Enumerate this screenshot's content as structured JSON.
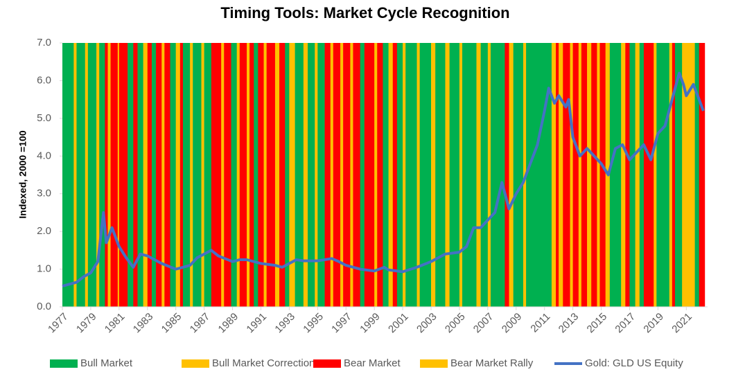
{
  "chart_data": {
    "type": "line",
    "title": "Timing Tools: Market Cycle Recognition",
    "ylabel": "Indexed, 2000 =100",
    "xlim": [
      1977,
      2022.5
    ],
    "ylim": [
      0,
      7
    ],
    "xticks": [
      1977,
      1979,
      1981,
      1983,
      1985,
      1987,
      1989,
      1991,
      1993,
      1995,
      1997,
      1999,
      2001,
      2003,
      2005,
      2007,
      2009,
      2011,
      2013,
      2015,
      2017,
      2019,
      2021
    ],
    "yticks": [
      {
        "value": 0,
        "label": "0.0"
      },
      {
        "value": 1,
        "label": "1.0"
      },
      {
        "value": 2,
        "label": "2.0"
      },
      {
        "value": 3,
        "label": "3.0"
      },
      {
        "value": 4,
        "label": "4.0"
      },
      {
        "value": 5,
        "label": "5.0"
      },
      {
        "value": 6,
        "label": "6.0"
      },
      {
        "value": 7,
        "label": "7.0"
      }
    ],
    "regimes": [
      {
        "name": "Bull Market",
        "color": "#00b050"
      },
      {
        "name": "Bull Market Correction",
        "color": "#ffc000"
      },
      {
        "name": "Bear Market",
        "color": "#ff0000"
      },
      {
        "name": "Bear Market Rally",
        "color": "#ffc000"
      }
    ],
    "band_edges": [
      1977,
      1977.8,
      1978,
      1978.6,
      1978.8,
      1979.4,
      1979.6,
      1980.0,
      1980.2,
      1980.4,
      1980.9,
      1981.0,
      1981.6,
      1982.0,
      1982.3,
      1982.7,
      1983.0,
      1983.3,
      1983.6,
      1984.0,
      1984.2,
      1984.6,
      1985.0,
      1985.3,
      1985.5,
      1986.0,
      1986.2,
      1986.8,
      1987.0,
      1987.5,
      1988.2,
      1988.4,
      1988.9,
      1989.3,
      1989.5,
      1990.0,
      1990.2,
      1990.5,
      1990.8,
      1991.2,
      1991.4,
      1992.0,
      1992.3,
      1992.7,
      1993.0,
      1993.4,
      1994.0,
      1994.3,
      1994.8,
      1995.0,
      1995.5,
      1995.9,
      1996.1,
      1996.6,
      1996.8,
      1997.3,
      1997.5,
      1998.0,
      1998.3,
      1999.0,
      1999.2,
      1999.6,
      2000.0,
      2000.3,
      2000.6,
      2001.0,
      2001.2,
      2002.0,
      2002.2,
      2003.0,
      2003.3,
      2004.0,
      2004.3,
      2005.0,
      2005.2,
      2006.2,
      2006.5,
      2007.0,
      2007.2,
      2008.2,
      2008.5,
      2008.8,
      2009.5,
      2009.7,
      2011.5,
      2011.8,
      2012.0,
      2012.3,
      2012.8,
      2013.0,
      2013.4,
      2013.6,
      2014.0,
      2014.3,
      2014.7,
      2014.9,
      2015.3,
      2015.6,
      2016.4,
      2016.7,
      2017.0,
      2017.4,
      2017.7,
      2018.0,
      2018.7,
      2018.9,
      2019.8,
      2020.0,
      2020.2,
      2020.7,
      2021.0,
      2021.2,
      2021.6,
      2021.9,
      2022.3
    ],
    "band_regime": [
      0,
      1,
      0,
      1,
      0,
      1,
      0,
      2,
      3,
      2,
      3,
      2,
      0,
      2,
      0,
      1,
      2,
      0,
      2,
      3,
      2,
      0,
      1,
      2,
      0,
      1,
      0,
      1,
      0,
      2,
      3,
      2,
      0,
      1,
      2,
      3,
      2,
      0,
      2,
      1,
      2,
      3,
      2,
      0,
      1,
      0,
      1,
      0,
      1,
      0,
      2,
      3,
      2,
      1,
      2,
      3,
      2,
      0,
      2,
      1,
      2,
      0,
      1,
      2,
      0,
      1,
      0,
      1,
      0,
      1,
      0,
      1,
      0,
      1,
      0,
      1,
      0,
      1,
      0,
      2,
      3,
      0,
      1,
      0,
      1,
      2,
      3,
      2,
      1,
      2,
      3,
      2,
      1,
      2,
      3,
      2,
      1,
      0,
      1,
      2,
      0,
      1,
      0,
      2,
      3,
      0,
      1,
      2,
      0,
      1,
      3,
      1,
      0,
      2
    ],
    "x": [
      1977,
      1978,
      1978.5,
      1979,
      1979.5,
      1979.9,
      1980.1,
      1980.5,
      1981,
      1981.5,
      1982,
      1982.5,
      1983,
      1983.5,
      1984,
      1985,
      1985.5,
      1986,
      1986.5,
      1987,
      1987.5,
      1988,
      1989,
      1989.5,
      1990,
      1991,
      1992,
      1992.5,
      1993,
      1993.5,
      1994,
      1995,
      1996,
      1996.5,
      1997,
      1998,
      1999,
      1999.7,
      2000,
      2001,
      2002,
      2003,
      2004,
      2005,
      2005.5,
      2006,
      2006.5,
      2007,
      2007.5,
      2008,
      2008.5,
      2009,
      2009.5,
      2010,
      2010.5,
      2011,
      2011.3,
      2011.7,
      2012,
      2012.5,
      2012.7,
      2013,
      2013.5,
      2014,
      2014.5,
      2015,
      2015.5,
      2016,
      2016.5,
      2017,
      2017.5,
      2018,
      2018.5,
      2019,
      2019.5,
      2020,
      2020.5,
      2020.8,
      2021,
      2021.5,
      2021.8,
      2022.2
    ],
    "series": [
      {
        "name": "Gold: GLD US Equity",
        "color": "#4472c4",
        "values": [
          0.55,
          0.65,
          0.8,
          0.9,
          1.2,
          2.5,
          1.7,
          2.1,
          1.6,
          1.3,
          1.05,
          1.4,
          1.35,
          1.25,
          1.15,
          1.0,
          1.05,
          1.1,
          1.3,
          1.4,
          1.5,
          1.35,
          1.2,
          1.25,
          1.25,
          1.15,
          1.1,
          1.05,
          1.15,
          1.25,
          1.22,
          1.22,
          1.28,
          1.2,
          1.1,
          1.0,
          0.95,
          1.05,
          0.98,
          0.93,
          1.05,
          1.2,
          1.4,
          1.45,
          1.6,
          2.1,
          2.1,
          2.3,
          2.5,
          3.3,
          2.6,
          3.0,
          3.3,
          3.8,
          4.3,
          5.2,
          5.8,
          5.4,
          5.6,
          5.3,
          5.5,
          4.5,
          4.0,
          4.2,
          4.0,
          3.8,
          3.5,
          4.2,
          4.3,
          3.9,
          4.1,
          4.3,
          3.9,
          4.6,
          4.8,
          5.5,
          6.2,
          5.9,
          5.6,
          5.9,
          5.6,
          5.2
        ]
      }
    ]
  }
}
